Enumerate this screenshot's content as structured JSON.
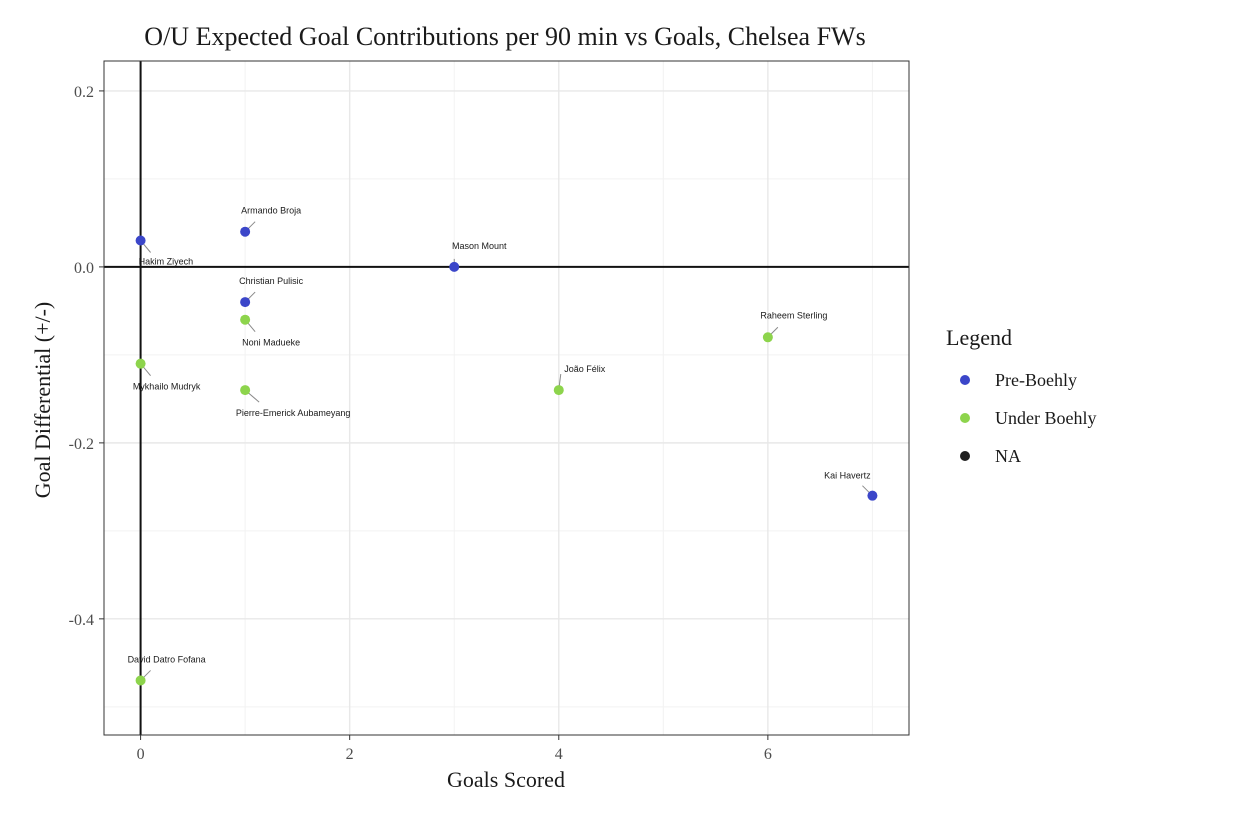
{
  "chart_data": {
    "type": "scatter",
    "title": "O/U Expected Goal Contributions per 90 min vs Goals, Chelsea FWs",
    "xlabel": "Goals Scored",
    "ylabel": "Goal Differential (+/-)",
    "xlim": [
      -0.35,
      7.35
    ],
    "ylim": [
      -0.532,
      0.234
    ],
    "x_ticks": [
      0,
      2,
      4,
      6
    ],
    "y_ticks": [
      0.2,
      0.0,
      -0.2,
      -0.4
    ],
    "x_tick_labels": [
      "0",
      "2",
      "4",
      "6"
    ],
    "y_tick_labels": [
      "0.2",
      "0.0",
      "-0.2",
      "-0.4"
    ],
    "grid": true,
    "reference_lines": {
      "x": 0,
      "y": 0
    },
    "legend": {
      "title": "Legend",
      "placement": "right",
      "entries": [
        {
          "name": "Pre-Boehly",
          "color": "#3b46c9"
        },
        {
          "name": "Under Boehly",
          "color": "#8dd44c"
        },
        {
          "name": "NA",
          "color": "#1f1f1f"
        }
      ]
    },
    "points": [
      {
        "label": "Hakim Ziyech",
        "x": 0,
        "y": 0.03,
        "group": "Pre-Boehly"
      },
      {
        "label": "Armando Broja",
        "x": 1,
        "y": 0.04,
        "group": "Pre-Boehly"
      },
      {
        "label": "Mason Mount",
        "x": 3,
        "y": 0.0,
        "group": "Pre-Boehly"
      },
      {
        "label": "Christian Pulisic",
        "x": 1,
        "y": -0.04,
        "group": "Pre-Boehly"
      },
      {
        "label": "Noni Madueke",
        "x": 1,
        "y": -0.06,
        "group": "Under Boehly"
      },
      {
        "label": "Raheem Sterling",
        "x": 6,
        "y": -0.08,
        "group": "Under Boehly"
      },
      {
        "label": "Mykhailo Mudryk",
        "x": 0,
        "y": -0.11,
        "group": "Under Boehly"
      },
      {
        "label": "Pierre-Emerick Aubameyang",
        "x": 1,
        "y": -0.14,
        "group": "Under Boehly"
      },
      {
        "label": "João Félix",
        "x": 4,
        "y": -0.14,
        "group": "Under Boehly"
      },
      {
        "label": "Kai Havertz",
        "x": 7,
        "y": -0.26,
        "group": "Pre-Boehly"
      },
      {
        "label": "David Datro Fofana",
        "x": 0,
        "y": -0.47,
        "group": "Under Boehly"
      }
    ]
  }
}
